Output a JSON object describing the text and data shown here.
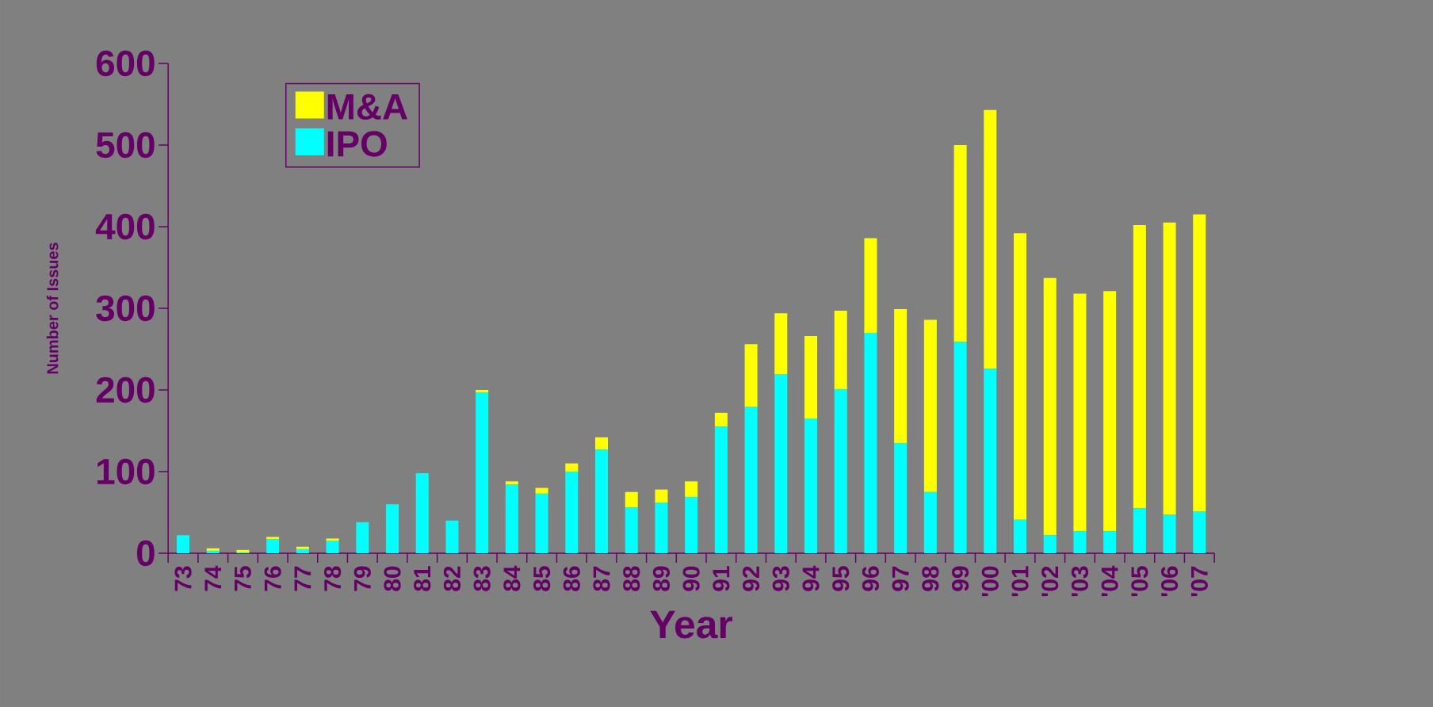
{
  "chart_data": {
    "type": "bar",
    "stacked": true,
    "xlabel": "Year",
    "ylabel": "Number of Issues",
    "categories": [
      "73",
      "74",
      "75",
      "76",
      "77",
      "78",
      "79",
      "80",
      "81",
      "82",
      "83",
      "84",
      "85",
      "86",
      "87",
      "88",
      "89",
      "90",
      "91",
      "92",
      "93",
      "94",
      "95",
      "96",
      "97",
      "98",
      "99",
      "'00",
      "'01",
      "'02",
      "'03",
      "'04",
      "'05",
      "'06",
      "'07"
    ],
    "series": [
      {
        "name": "IPO",
        "color": "#00ffff",
        "values": [
          22,
          3,
          1,
          17,
          5,
          15,
          38,
          60,
          98,
          40,
          197,
          84,
          73,
          100,
          127,
          56,
          62,
          69,
          155,
          179,
          219,
          165,
          201,
          270,
          135,
          75,
          259,
          226,
          41,
          22,
          27,
          27,
          55,
          47,
          51
        ]
      },
      {
        "name": "M&A",
        "color": "#ffff00",
        "values": [
          0,
          3,
          3,
          3,
          3,
          3,
          0,
          0,
          0,
          0,
          3,
          4,
          7,
          10,
          15,
          19,
          16,
          19,
          17,
          77,
          75,
          101,
          96,
          116,
          164,
          211,
          241,
          317,
          351,
          315,
          291,
          294,
          347,
          358,
          364
        ]
      }
    ],
    "ylim": [
      0,
      600
    ],
    "yticks": [
      0,
      100,
      200,
      300,
      400,
      500,
      600
    ],
    "legend": "top left"
  }
}
